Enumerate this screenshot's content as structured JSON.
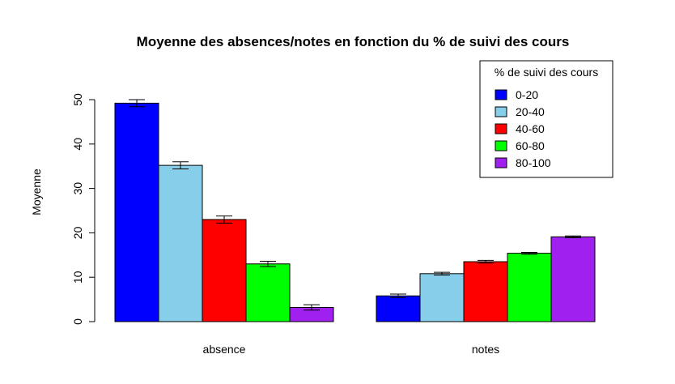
{
  "chart_data": {
    "type": "bar",
    "title": "Moyenne des absences/notes en fonction du % de suivi des cours",
    "xlabel": "",
    "ylabel": "Moyenne",
    "ylim": [
      0,
      50
    ],
    "yticks": [
      0,
      10,
      20,
      30,
      40,
      50
    ],
    "grid": false,
    "legend_position": "top-right",
    "legend_title": "% de suivi des cours",
    "categories": [
      "absence",
      "notes"
    ],
    "series": [
      {
        "name": "0-20",
        "color": "#0000FF",
        "values": [
          49.2,
          5.8
        ],
        "errors": [
          0.8,
          0.4
        ]
      },
      {
        "name": "20-40",
        "color": "#87CEEB",
        "values": [
          35.2,
          10.8
        ],
        "errors": [
          0.8,
          0.3
        ]
      },
      {
        "name": "40-60",
        "color": "#FF0000",
        "values": [
          23.0,
          13.5
        ],
        "errors": [
          0.8,
          0.3
        ]
      },
      {
        "name": "60-80",
        "color": "#00FF00",
        "values": [
          13.0,
          15.4
        ],
        "errors": [
          0.6,
          0.2
        ]
      },
      {
        "name": "80-100",
        "color": "#A020F0",
        "values": [
          3.2,
          19.1
        ],
        "errors": [
          0.6,
          0.2
        ]
      }
    ]
  }
}
